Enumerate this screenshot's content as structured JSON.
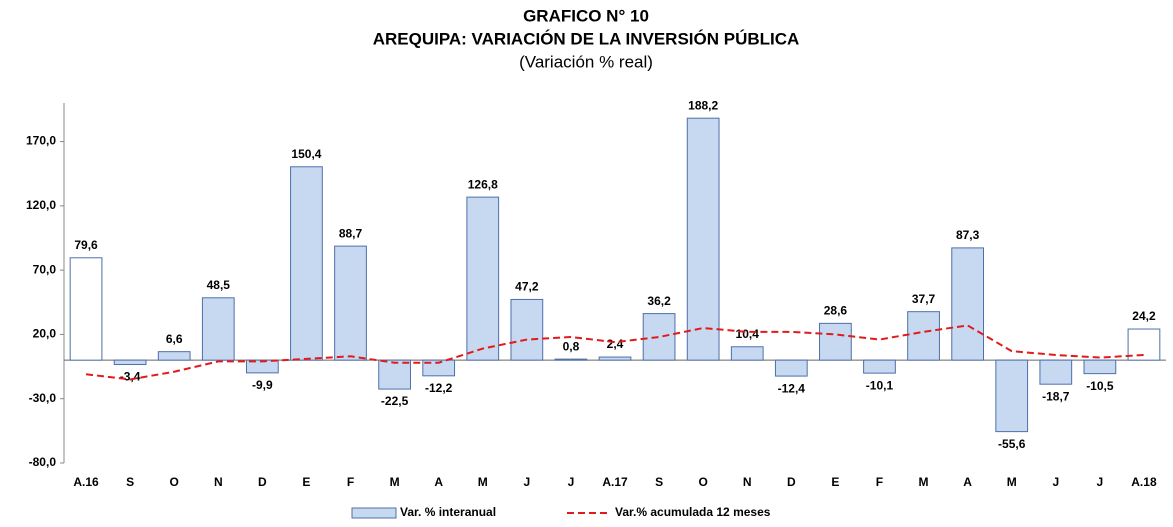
{
  "chart_data": {
    "type": "bar_line",
    "title": "GRAFICO N° 10",
    "subtitle": "AREQUIPA: VARIACIÓN DE LA INVERSIÓN PÚBLICA",
    "note": "(Variación % real)",
    "categories": [
      "A.16",
      "S",
      "O",
      "N",
      "D",
      "E",
      "F",
      "M",
      "A",
      "M",
      "J",
      "J",
      "A.17",
      "S",
      "O",
      "N",
      "D",
      "E",
      "F",
      "M",
      "A",
      "M",
      "J",
      "J",
      "A.18"
    ],
    "series": [
      {
        "name": "Var. % interanual",
        "type": "bar",
        "color": "#c6d9f1",
        "edge_color": "#4f6fa8",
        "point_colors": [
          "#ffffff",
          "#c6d9f1",
          "#c6d9f1",
          "#c6d9f1",
          "#c6d9f1",
          "#c6d9f1",
          "#c6d9f1",
          "#c6d9f1",
          "#c6d9f1",
          "#c6d9f1",
          "#c6d9f1",
          "#c6d9f1",
          "#c6d9f1",
          "#c6d9f1",
          "#c6d9f1",
          "#c6d9f1",
          "#c6d9f1",
          "#c6d9f1",
          "#c6d9f1",
          "#c6d9f1",
          "#c6d9f1",
          "#c6d9f1",
          "#c6d9f1",
          "#c6d9f1",
          "#ffffff"
        ],
        "values": [
          79.6,
          -3.4,
          6.6,
          48.5,
          -9.9,
          150.4,
          88.7,
          -22.5,
          -12.2,
          126.8,
          47.2,
          0.8,
          2.4,
          36.2,
          188.2,
          10.4,
          -12.4,
          28.6,
          -10.1,
          37.7,
          87.3,
          -55.6,
          -18.7,
          -10.5,
          24.2
        ],
        "value_labels": [
          "79,6",
          "-3,4",
          "6,6",
          "48,5",
          "-9,9",
          "150,4",
          "88,7",
          "-22,5",
          "-12,2",
          "126,8",
          "47,2",
          "0,8",
          "2,4",
          "36,2",
          "188,2",
          "10,4",
          "-12,4",
          "28,6",
          "-10,1",
          "37,7",
          "87,3",
          "-55,6",
          "-18,7",
          "-10,5",
          "24,2"
        ]
      },
      {
        "name": "Var.% acumulada 12 meses",
        "type": "line",
        "color": "#e31a1c",
        "values": [
          -11,
          -15,
          -9,
          -1,
          -1,
          1,
          3,
          -2,
          -2,
          9,
          16,
          18,
          14,
          18,
          25,
          22,
          22,
          20,
          16,
          22,
          27,
          7,
          4,
          2,
          4
        ]
      }
    ],
    "ylim": [
      -80,
      200
    ],
    "yticks": [
      {
        "value": -80,
        "label": "-80,0"
      },
      {
        "value": -30,
        "label": "-30,0"
      },
      {
        "value": 20,
        "label": "20,0"
      },
      {
        "value": 70,
        "label": "70,0"
      },
      {
        "value": 120,
        "label": "120,0"
      },
      {
        "value": 170,
        "label": "170,0"
      }
    ]
  }
}
